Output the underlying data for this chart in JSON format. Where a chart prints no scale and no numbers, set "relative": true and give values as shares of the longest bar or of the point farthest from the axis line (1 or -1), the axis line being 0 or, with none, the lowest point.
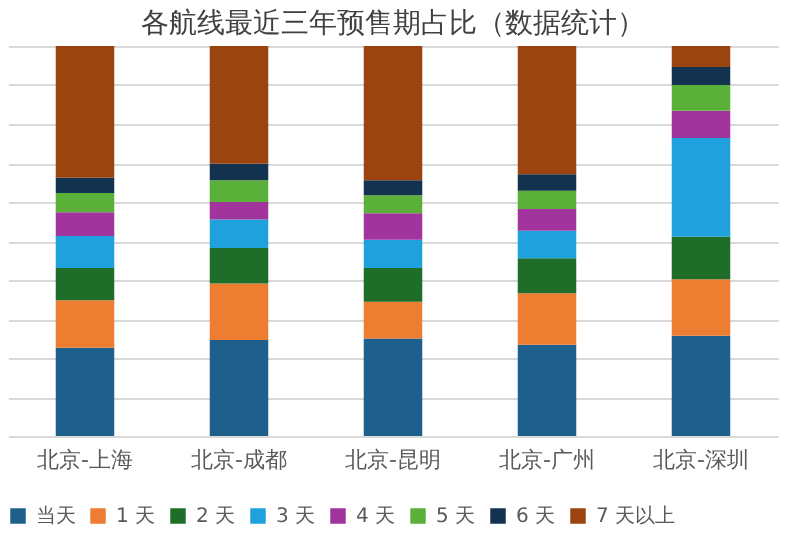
{
  "chart_data": {
    "type": "bar",
    "title": "各航线最近三年预售期占比（数据统计）",
    "relative": true,
    "stacked": true,
    "grid": "y",
    "legend": "bottom",
    "categories": [
      "北京-上海",
      "北京-成都",
      "北京-昆明",
      "北京-广州",
      "北京-深圳"
    ],
    "series": [
      {
        "name": "当天",
        "color": "#1f5f8b",
        "values": [
          0.226,
          0.246,
          0.25,
          0.234,
          0.257
        ]
      },
      {
        "name": "1 天",
        "color": "#ed7d31",
        "values": [
          0.122,
          0.145,
          0.094,
          0.132,
          0.145
        ]
      },
      {
        "name": "2 天",
        "color": "#1e6e2a",
        "values": [
          0.083,
          0.091,
          0.087,
          0.09,
          0.109
        ]
      },
      {
        "name": "3 天",
        "color": "#1ea1dc",
        "values": [
          0.082,
          0.073,
          0.072,
          0.07,
          0.253
        ]
      },
      {
        "name": "4 天",
        "color": "#a2349e",
        "values": [
          0.061,
          0.045,
          0.068,
          0.056,
          0.07
        ]
      },
      {
        "name": "5 天",
        "color": "#5bb03a",
        "values": [
          0.049,
          0.056,
          0.046,
          0.047,
          0.066
        ]
      },
      {
        "name": "6 天",
        "color": "#13324f",
        "values": [
          0.039,
          0.042,
          0.039,
          0.042,
          0.046
        ]
      },
      {
        "name": "7 天以上",
        "color": "#9c4410",
        "values": [
          0.338,
          0.302,
          0.344,
          0.329,
          0.054
        ]
      }
    ]
  }
}
